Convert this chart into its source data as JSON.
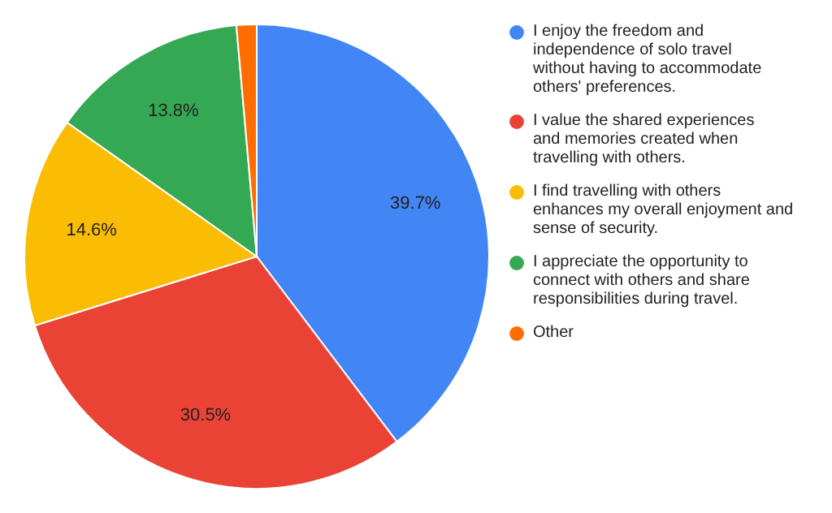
{
  "chart_data": {
    "type": "pie",
    "categories": [
      "I enjoy the freedom and independence of solo travel without having to accommodate others' preferences.",
      "I value the shared experiences and memories created when travelling with others.",
      "I find travelling with others enhances my overall enjoyment and sense of security.",
      "I appreciate the opportunity to connect with others and share responsibilities during travel.",
      "Other"
    ],
    "values": [
      39.7,
      30.5,
      14.6,
      13.8,
      1.4
    ],
    "colors": [
      "#4285f4",
      "#ea4335",
      "#fbbc04",
      "#34a853",
      "#ff6d01"
    ],
    "value_labels": [
      "39.7%",
      "30.5%",
      "14.6%",
      "13.8%",
      null
    ],
    "legend": "right"
  }
}
